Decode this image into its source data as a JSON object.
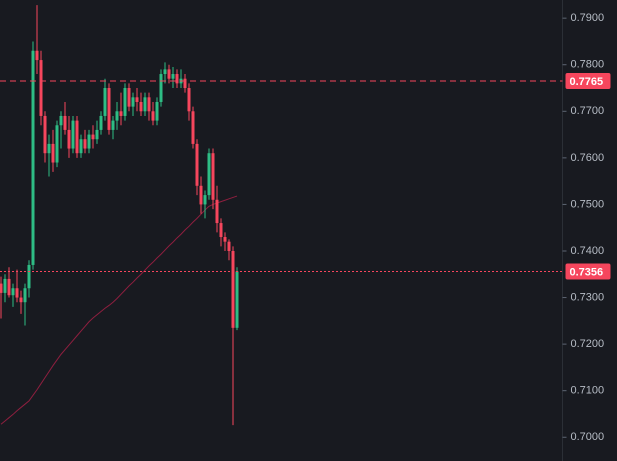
{
  "chart_data": {
    "type": "candlestick",
    "up_color": "#2ebd85",
    "down_color": "#f6465d",
    "open": [
      0.733,
      0.731,
      0.734,
      0.7305,
      0.732,
      0.73,
      0.729,
      0.732,
      0.737,
      0.783,
      0.781,
      0.769,
      0.761,
      0.763,
      0.759,
      0.767,
      0.769,
      0.766,
      0.762,
      0.768,
      0.761,
      0.764,
      0.762,
      0.765,
      0.764,
      0.766,
      0.769,
      0.775,
      0.766,
      0.768,
      0.77,
      0.769,
      0.775,
      0.771,
      0.773,
      0.772,
      0.77,
      0.773,
      0.77,
      0.768,
      0.772,
      0.778,
      0.779,
      0.777,
      0.778,
      0.776,
      0.777,
      0.775,
      0.77,
      0.763,
      0.754,
      0.75,
      0.752,
      0.761,
      0.751,
      0.746,
      0.743,
      0.742,
      0.74,
      0.7235
    ],
    "high": [
      0.7345,
      0.735,
      0.7365,
      0.733,
      0.736,
      0.7315,
      0.733,
      0.738,
      0.785,
      0.7928,
      0.783,
      0.77,
      0.765,
      0.766,
      0.768,
      0.77,
      0.772,
      0.769,
      0.769,
      0.769,
      0.765,
      0.766,
      0.766,
      0.767,
      0.768,
      0.77,
      0.777,
      0.776,
      0.769,
      0.772,
      0.774,
      0.776,
      0.776,
      0.774,
      0.775,
      0.774,
      0.774,
      0.774,
      0.772,
      0.773,
      0.779,
      0.7805,
      0.78,
      0.7795,
      0.779,
      0.779,
      0.778,
      0.776,
      0.771,
      0.764,
      0.756,
      0.753,
      0.762,
      0.762,
      0.754,
      0.747,
      0.744,
      0.7425,
      0.741,
      0.7365
    ],
    "low": [
      0.7255,
      0.729,
      0.73,
      0.728,
      0.729,
      0.7265,
      0.724,
      0.73,
      0.736,
      0.778,
      0.767,
      0.759,
      0.756,
      0.757,
      0.758,
      0.762,
      0.765,
      0.76,
      0.761,
      0.76,
      0.76,
      0.761,
      0.761,
      0.762,
      0.763,
      0.765,
      0.768,
      0.765,
      0.764,
      0.766,
      0.767,
      0.768,
      0.77,
      0.769,
      0.77,
      0.769,
      0.769,
      0.768,
      0.767,
      0.767,
      0.771,
      0.776,
      0.776,
      0.775,
      0.775,
      0.775,
      0.774,
      0.768,
      0.762,
      0.752,
      0.748,
      0.747,
      0.751,
      0.749,
      0.744,
      0.741,
      0.74,
      0.738,
      0.7026,
      0.723
    ],
    "close": [
      0.731,
      0.734,
      0.7305,
      0.732,
      0.73,
      0.729,
      0.732,
      0.737,
      0.783,
      0.781,
      0.769,
      0.761,
      0.763,
      0.759,
      0.767,
      0.769,
      0.766,
      0.762,
      0.768,
      0.761,
      0.764,
      0.762,
      0.765,
      0.764,
      0.766,
      0.769,
      0.775,
      0.766,
      0.768,
      0.77,
      0.769,
      0.775,
      0.771,
      0.773,
      0.772,
      0.77,
      0.773,
      0.77,
      0.768,
      0.772,
      0.778,
      0.779,
      0.777,
      0.778,
      0.776,
      0.777,
      0.775,
      0.77,
      0.763,
      0.754,
      0.75,
      0.752,
      0.761,
      0.751,
      0.746,
      0.743,
      0.742,
      0.74,
      0.7235,
      0.7356
    ],
    "ma": {
      "color": "#8e1f3f",
      "values": [
        0.7028,
        0.7035,
        0.7042,
        0.7049,
        0.7057,
        0.7064,
        0.7071,
        0.7078,
        0.709,
        0.7102,
        0.7115,
        0.7128,
        0.7141,
        0.7154,
        0.7166,
        0.7178,
        0.7188,
        0.7198,
        0.7208,
        0.7218,
        0.7228,
        0.7238,
        0.7248,
        0.7256,
        0.7263,
        0.727,
        0.7277,
        0.7283,
        0.729,
        0.7298,
        0.7307,
        0.7316,
        0.7325,
        0.7333,
        0.7342,
        0.735,
        0.7359,
        0.7368,
        0.7376,
        0.7385,
        0.7393,
        0.7402,
        0.7411,
        0.7419,
        0.7428,
        0.7436,
        0.7445,
        0.7453,
        0.7462,
        0.747,
        0.7479,
        0.7488,
        0.7496,
        0.75,
        0.7503,
        0.7506,
        0.7509,
        0.7512,
        0.7515,
        0.7518
      ]
    },
    "ylim": [
      0.6949,
      0.7939
    ],
    "yticks": [
      {
        "value": 0.7,
        "label": "0.7000"
      },
      {
        "value": 0.71,
        "label": "0.7100"
      },
      {
        "value": 0.72,
        "label": "0.7200"
      },
      {
        "value": 0.73,
        "label": "0.7300"
      },
      {
        "value": 0.74,
        "label": "0.7400"
      },
      {
        "value": 0.75,
        "label": "0.7500"
      },
      {
        "value": 0.76,
        "label": "0.7600"
      },
      {
        "value": 0.77,
        "label": "0.7700"
      },
      {
        "value": 0.78,
        "label": "0.7800"
      },
      {
        "value": 0.79,
        "label": "0.7900"
      }
    ],
    "price_lines": [
      {
        "value": 0.7765,
        "color": "#f6465d",
        "style": "dashed"
      },
      {
        "value": 0.7356,
        "color": "#f6465d",
        "style": "dotted"
      }
    ]
  }
}
